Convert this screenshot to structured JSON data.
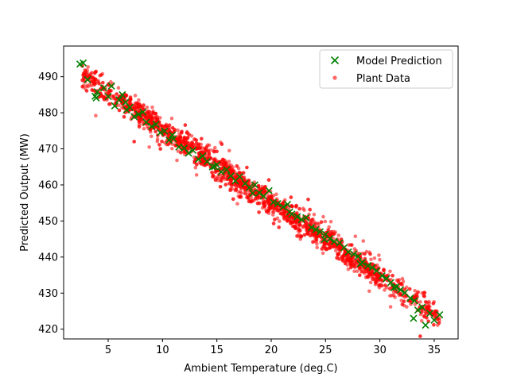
{
  "chart_data": {
    "type": "scatter",
    "title": "",
    "xlabel": "Ambient Temperature (deg.C)",
    "ylabel": "Predicted Output (MW)",
    "xlim": [
      0.9,
      37.2
    ],
    "ylim": [
      417.3,
      498.5
    ],
    "xticks": [
      5,
      10,
      15,
      20,
      25,
      30,
      35
    ],
    "yticks": [
      420,
      430,
      440,
      450,
      460,
      470,
      480,
      490
    ],
    "grid": false,
    "legend_position": "top-right",
    "series": [
      {
        "name": "Model Prediction",
        "marker": "x",
        "color": "#008000",
        "x": [
          2.4,
          2.7,
          3.1,
          3.8,
          4.0,
          4.6,
          5.0,
          5.3,
          5.6,
          6.0,
          6.3,
          6.7,
          7.0,
          7.4,
          7.8,
          8.2,
          8.5,
          9.0,
          9.4,
          9.8,
          10.2,
          10.6,
          11.0,
          11.5,
          12.0,
          12.4,
          12.8,
          13.3,
          13.7,
          14.1,
          14.6,
          15.0,
          15.4,
          15.9,
          16.3,
          16.7,
          17.1,
          17.6,
          18.0,
          18.5,
          18.9,
          19.3,
          19.8,
          20.2,
          20.6,
          21.1,
          21.5,
          21.9,
          22.4,
          22.8,
          23.2,
          23.7,
          24.1,
          24.5,
          25.0,
          25.4,
          25.8,
          26.3,
          26.7,
          27.1,
          27.6,
          28.0,
          28.4,
          28.9,
          29.3,
          29.7,
          30.2,
          30.6,
          31.0,
          31.5,
          31.9,
          32.3,
          32.8,
          33.2,
          33.5,
          33.9,
          34.2,
          34.6,
          35.0,
          35.5,
          3.9,
          6.6,
          10.9,
          14.8,
          18.3,
          21.7,
          24.9,
          28.2,
          31.3,
          33.1
        ],
        "y": [
          493.5,
          493.8,
          489.2,
          484.6,
          485.8,
          486.9,
          484.5,
          487.4,
          481.9,
          483.6,
          485.0,
          480.8,
          481.5,
          478.9,
          479.6,
          480.2,
          477.4,
          476.2,
          476.8,
          474.5,
          474.9,
          472.4,
          472.8,
          470.5,
          470.2,
          468.8,
          469.6,
          467.1,
          468.0,
          466.5,
          465.0,
          465.6,
          463.6,
          464.2,
          462.5,
          461.1,
          462.3,
          460.4,
          459.3,
          460.0,
          457.8,
          456.9,
          458.4,
          455.2,
          454.8,
          453.9,
          454.6,
          451.9,
          451.2,
          450.4,
          450.9,
          448.2,
          447.6,
          447.0,
          446.3,
          445.1,
          444.3,
          443.9,
          442.6,
          441.4,
          440.8,
          440.2,
          438.5,
          437.6,
          437.1,
          436.2,
          434.8,
          434.0,
          432.9,
          431.7,
          430.9,
          430.1,
          428.6,
          427.9,
          425.3,
          426.1,
          421.1,
          424.4,
          422.5,
          424.0,
          484.1,
          482.9,
          473.8,
          465.1,
          457.7,
          452.5,
          444.9,
          438.1,
          431.5,
          423.0
        ]
      },
      {
        "name": "Plant Data",
        "marker": "o",
        "color": "#ff0000",
        "trend": {
          "x_start": 2.4,
          "x_end": 35.5,
          "y_start": 491.0,
          "y_end": 423.5
        },
        "point_count": 2400,
        "x_range": [
          2.6,
          35.5
        ],
        "y_range": [
          426.0,
          495.0
        ]
      }
    ]
  }
}
